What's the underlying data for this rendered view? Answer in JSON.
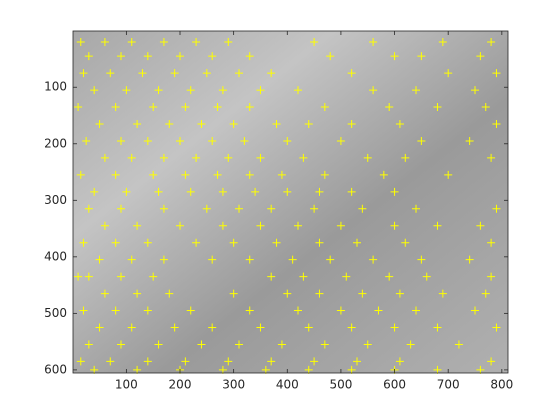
{
  "chart_data": {
    "type": "scatter",
    "marker": "+",
    "color": "#ffff00",
    "y_reversed": true,
    "x": [
      15,
      60,
      110,
      170,
      230,
      290,
      450,
      560,
      690,
      780,
      30,
      90,
      140,
      200,
      260,
      330,
      480,
      600,
      650,
      760,
      20,
      70,
      130,
      190,
      250,
      310,
      370,
      520,
      700,
      790,
      40,
      100,
      160,
      220,
      280,
      350,
      420,
      560,
      640,
      750,
      10,
      80,
      150,
      210,
      270,
      330,
      470,
      590,
      680,
      770,
      50,
      120,
      180,
      240,
      300,
      380,
      440,
      520,
      610,
      790,
      25,
      90,
      140,
      200,
      260,
      320,
      400,
      500,
      650,
      740,
      60,
      110,
      170,
      230,
      290,
      350,
      430,
      550,
      620,
      780,
      15,
      80,
      150,
      210,
      270,
      330,
      390,
      470,
      580,
      700,
      40,
      100,
      160,
      220,
      280,
      340,
      400,
      460,
      520,
      600,
      30,
      90,
      170,
      250,
      310,
      370,
      450,
      540,
      640,
      790,
      60,
      120,
      200,
      280,
      350,
      420,
      500,
      600,
      680,
      760,
      20,
      80,
      140,
      230,
      300,
      380,
      460,
      530,
      620,
      780,
      50,
      110,
      170,
      260,
      330,
      410,
      480,
      560,
      650,
      740,
      30,
      90,
      150,
      370,
      430,
      510,
      590,
      660,
      780,
      10,
      60,
      120,
      180,
      300,
      400,
      460,
      540,
      610,
      690,
      770,
      20,
      80,
      140,
      220,
      330,
      420,
      500,
      570,
      640,
      750,
      50,
      110,
      190,
      260,
      350,
      440,
      520,
      600,
      680,
      790,
      30,
      90,
      160,
      240,
      310,
      390,
      470,
      550,
      630,
      720,
      15,
      70,
      140,
      210,
      290,
      370,
      450,
      530,
      610,
      780,
      40,
      120,
      200,
      280,
      360,
      440,
      520,
      600,
      680,
      760
    ],
    "values": [
      20,
      20,
      20,
      20,
      20,
      20,
      20,
      20,
      20,
      20,
      45,
      45,
      45,
      45,
      45,
      45,
      45,
      45,
      45,
      45,
      75,
      75,
      75,
      75,
      75,
      75,
      75,
      75,
      75,
      75,
      105,
      105,
      105,
      105,
      105,
      105,
      105,
      105,
      105,
      105,
      135,
      135,
      135,
      135,
      135,
      135,
      135,
      135,
      135,
      135,
      165,
      165,
      165,
      165,
      165,
      165,
      165,
      165,
      165,
      165,
      195,
      195,
      195,
      195,
      195,
      195,
      195,
      195,
      195,
      195,
      225,
      225,
      225,
      225,
      225,
      225,
      225,
      225,
      225,
      225,
      255,
      255,
      255,
      255,
      255,
      255,
      255,
      255,
      255,
      255,
      285,
      285,
      285,
      285,
      285,
      285,
      285,
      285,
      285,
      285,
      315,
      315,
      315,
      315,
      315,
      315,
      315,
      315,
      315,
      315,
      345,
      345,
      345,
      345,
      345,
      345,
      345,
      345,
      345,
      345,
      375,
      375,
      375,
      375,
      375,
      375,
      375,
      375,
      375,
      375,
      405,
      405,
      405,
      405,
      405,
      405,
      405,
      405,
      405,
      405,
      435,
      435,
      435,
      435,
      435,
      435,
      435,
      435,
      435,
      435,
      465,
      465,
      465,
      465,
      465,
      465,
      465,
      465,
      465,
      465,
      495,
      495,
      495,
      495,
      495,
      495,
      495,
      495,
      495,
      495,
      525,
      525,
      525,
      525,
      525,
      525,
      525,
      525,
      525,
      525,
      555,
      555,
      555,
      555,
      555,
      555,
      555,
      555,
      555,
      555,
      585,
      585,
      585,
      585,
      585,
      585,
      585,
      585,
      585,
      585,
      600,
      600,
      600,
      600,
      600,
      600,
      600,
      600,
      600,
      600
    ],
    "xlim": [
      0.5,
      811.5
    ],
    "ylim": [
      0.5,
      605.5
    ],
    "xticks": [
      100,
      200,
      300,
      400,
      500,
      600,
      700,
      800
    ],
    "yticks": [
      100,
      200,
      300,
      400,
      500,
      600
    ]
  }
}
